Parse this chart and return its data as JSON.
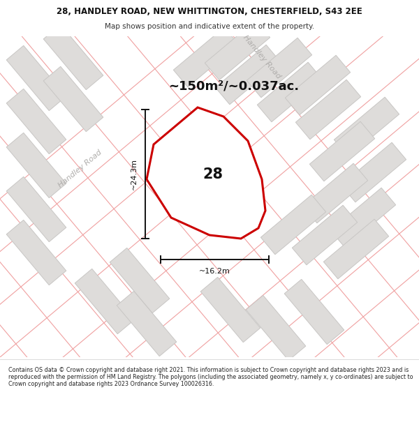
{
  "title_line1": "28, HANDLEY ROAD, NEW WHITTINGTON, CHESTERFIELD, S43 2EE",
  "title_line2": "Map shows position and indicative extent of the property.",
  "area_label": "~150m²/~0.037ac.",
  "plot_number": "28",
  "dim_vertical": "~24.3m",
  "dim_horizontal": "~16.2m",
  "road_label_top": "Handley Road",
  "road_label_left": "Handley Road",
  "footer_text": "Contains OS data © Crown copyright and database right 2021. This information is subject to Crown copyright and database rights 2023 and is reproduced with the permission of HM Land Registry. The polygons (including the associated geometry, namely x, y co-ordinates) are subject to Crown copyright and database rights 2023 Ordnance Survey 100026316.",
  "map_bg": "#f2f0ee",
  "building_fill": "#dedcda",
  "building_stroke": "#c8c6c4",
  "road_line_color": "#f0a0a0",
  "plot_stroke": "#cc0000",
  "plot_fill": "#ffffff",
  "dim_line_color": "#111111",
  "text_gray": "#b0aeac",
  "header_bg": "#ffffff",
  "footer_bg": "#ffffff",
  "title_color": "#111111",
  "subtitle_color": "#333333"
}
